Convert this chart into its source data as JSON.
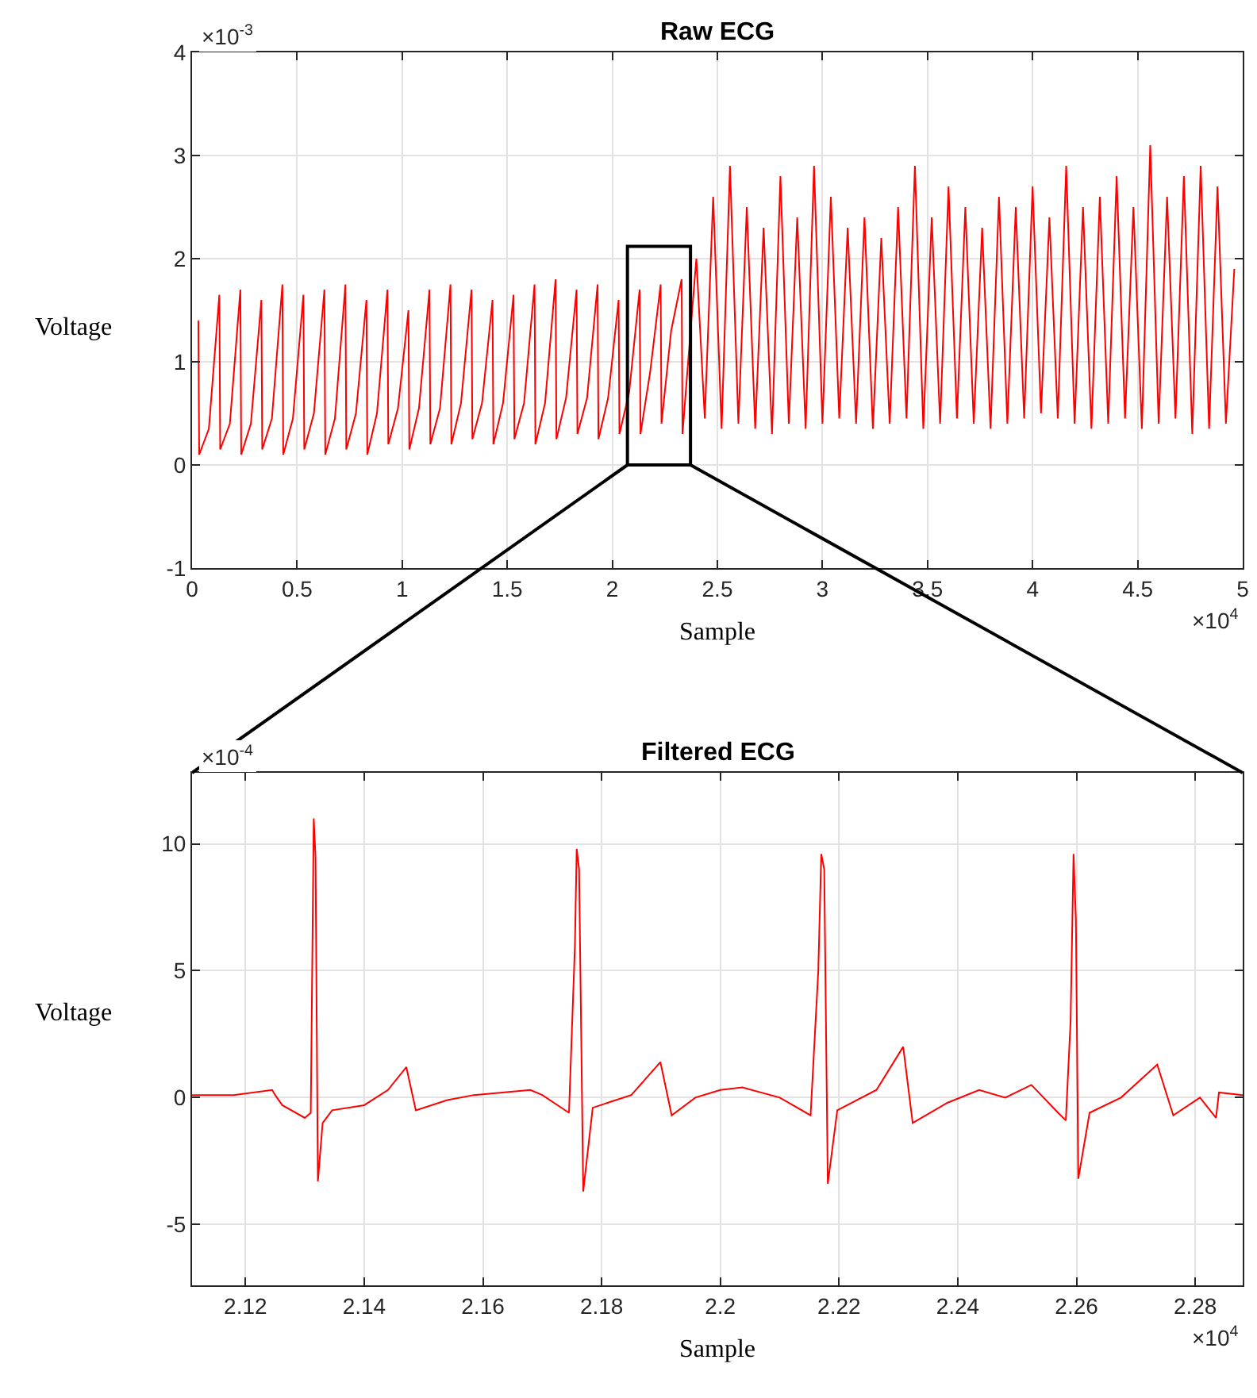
{
  "chart_data": [
    {
      "type": "line",
      "title": "Raw ECG",
      "xlabel": "Sample",
      "ylabel": "Voltage",
      "grid": true,
      "marker": "none",
      "line_style": "solid",
      "xlim": [
        0,
        5
      ],
      "ylim": [
        -1,
        4
      ],
      "xticks": [
        0,
        0.5,
        1,
        1.5,
        2,
        2.5,
        3,
        3.5,
        4,
        4.5,
        5
      ],
      "yticks": [
        -1,
        0,
        1,
        2,
        3,
        4
      ],
      "annotations": [
        "×10$^{-3}$",
        "×10$^{4}$"
      ],
      "series": [
        {
          "color": "#ff0000",
          "x": [
            0.03,
            0.034,
            0.08,
            0.13,
            0.134,
            0.18,
            0.23,
            0.234,
            0.28,
            0.33,
            0.334,
            0.38,
            0.43,
            0.434,
            0.48,
            0.53,
            0.534,
            0.58,
            0.63,
            0.634,
            0.68,
            0.73,
            0.734,
            0.78,
            0.83,
            0.834,
            0.88,
            0.93,
            0.934,
            0.98,
            1.03,
            1.034,
            1.08,
            1.13,
            1.134,
            1.18,
            1.23,
            1.234,
            1.28,
            1.33,
            1.334,
            1.38,
            1.43,
            1.434,
            1.48,
            1.53,
            1.534,
            1.58,
            1.63,
            1.634,
            1.68,
            1.73,
            1.734,
            1.78,
            1.83,
            1.834,
            1.88,
            1.93,
            1.934,
            1.98,
            2.03,
            2.034,
            2.08,
            2.13,
            2.134,
            2.18,
            2.23,
            2.234,
            2.28,
            2.33,
            2.334,
            2.38,
            2.4,
            2.44,
            2.48,
            2.52,
            2.56,
            2.6,
            2.64,
            2.68,
            2.72,
            2.76,
            2.8,
            2.84,
            2.88,
            2.92,
            2.96,
            3.0,
            3.04,
            3.08,
            3.12,
            3.16,
            3.2,
            3.24,
            3.28,
            3.32,
            3.36,
            3.4,
            3.44,
            3.48,
            3.52,
            3.56,
            3.6,
            3.64,
            3.68,
            3.72,
            3.76,
            3.8,
            3.84,
            3.88,
            3.92,
            3.96,
            4.0,
            4.04,
            4.08,
            4.12,
            4.16,
            4.2,
            4.24,
            4.28,
            4.32,
            4.36,
            4.4,
            4.44,
            4.48,
            4.52,
            4.56,
            4.6,
            4.64,
            4.68,
            4.72,
            4.76,
            4.8,
            4.84,
            4.88,
            4.92,
            4.96
          ],
          "values": [
            1.4,
            0.1,
            0.35,
            1.65,
            0.15,
            0.4,
            1.7,
            0.1,
            0.4,
            1.6,
            0.15,
            0.45,
            1.75,
            0.1,
            0.45,
            1.65,
            0.15,
            0.5,
            1.7,
            0.1,
            0.45,
            1.75,
            0.15,
            0.5,
            1.6,
            0.1,
            0.5,
            1.7,
            0.2,
            0.55,
            1.5,
            0.15,
            0.55,
            1.7,
            0.2,
            0.55,
            1.75,
            0.2,
            0.6,
            1.7,
            0.25,
            0.6,
            1.6,
            0.2,
            0.6,
            1.65,
            0.25,
            0.6,
            1.75,
            0.2,
            0.6,
            1.8,
            0.25,
            0.65,
            1.7,
            0.3,
            0.65,
            1.75,
            0.25,
            0.65,
            1.6,
            0.3,
            0.7,
            1.7,
            0.3,
            0.9,
            1.75,
            0.4,
            1.3,
            1.8,
            0.3,
            1.5,
            2.0,
            0.45,
            2.6,
            0.35,
            2.9,
            0.4,
            2.5,
            0.35,
            2.3,
            0.3,
            2.8,
            0.4,
            2.4,
            0.35,
            2.9,
            0.4,
            2.6,
            0.45,
            2.3,
            0.4,
            2.4,
            0.35,
            2.2,
            0.4,
            2.5,
            0.45,
            2.9,
            0.35,
            2.4,
            0.4,
            2.7,
            0.45,
            2.5,
            0.4,
            2.3,
            0.35,
            2.6,
            0.4,
            2.5,
            0.45,
            2.7,
            0.5,
            2.4,
            0.45,
            2.9,
            0.4,
            2.5,
            0.35,
            2.6,
            0.4,
            2.8,
            0.45,
            2.5,
            0.35,
            3.1,
            0.4,
            2.6,
            0.45,
            2.8,
            0.3,
            2.9,
            0.35,
            2.7,
            0.4,
            1.9
          ]
        }
      ]
    },
    {
      "type": "line",
      "title": "Filtered ECG",
      "xlabel": "Sample",
      "ylabel": "Voltage",
      "grid": true,
      "marker": "none",
      "line_style": "solid",
      "xlim": [
        2.111,
        2.288
      ],
      "ylim": [
        -7.4,
        12.8
      ],
      "xticks": [
        2.12,
        2.14,
        2.16,
        2.18,
        2.2,
        2.22,
        2.24,
        2.26,
        2.28
      ],
      "yticks": [
        -5,
        0,
        5,
        10
      ],
      "annotations": [
        "×10$^{-4}$",
        "×10$^{4}$"
      ],
      "series": [
        {
          "color": "#ff0000",
          "x": [
            2.111,
            2.118,
            2.1245,
            2.125,
            2.1262,
            2.13,
            2.131,
            2.1315,
            2.1318,
            2.1322,
            2.133,
            2.1346,
            2.14,
            2.144,
            2.1471,
            2.1487,
            2.154,
            2.1585,
            2.168,
            2.17,
            2.1745,
            2.1755,
            2.1758,
            2.1762,
            2.1769,
            2.1785,
            2.185,
            2.1899,
            2.1918,
            2.1958,
            2.2,
            2.2037,
            2.21,
            2.2152,
            2.2165,
            2.217,
            2.2175,
            2.2181,
            2.2197,
            2.2263,
            2.2308,
            2.2324,
            2.2383,
            2.2436,
            2.248,
            2.2524,
            2.2569,
            2.2582,
            2.259,
            2.2595,
            2.2599,
            2.2603,
            2.2622,
            2.2675,
            2.2736,
            2.2763,
            2.2808,
            2.2835,
            2.284,
            2.288
          ],
          "values": [
            0.1,
            0.1,
            0.3,
            0.1,
            -0.3,
            -0.8,
            -0.6,
            11,
            9.5,
            -3.3,
            -1,
            -0.5,
            -0.3,
            0.3,
            1.2,
            -0.5,
            -0.1,
            0.1,
            0.3,
            0.1,
            -0.6,
            6,
            9.8,
            9,
            -3.7,
            -0.4,
            0.1,
            1.4,
            -0.7,
            0,
            0.3,
            0.4,
            0,
            -0.7,
            5,
            9.6,
            9,
            -3.4,
            -0.5,
            0.3,
            2,
            -1,
            -0.2,
            0.3,
            0,
            0.5,
            -0.6,
            -0.9,
            3,
            9.6,
            7,
            -3.2,
            -0.6,
            0,
            1.3,
            -0.7,
            0,
            -0.8,
            0.2,
            0.1
          ]
        }
      ]
    }
  ]
}
